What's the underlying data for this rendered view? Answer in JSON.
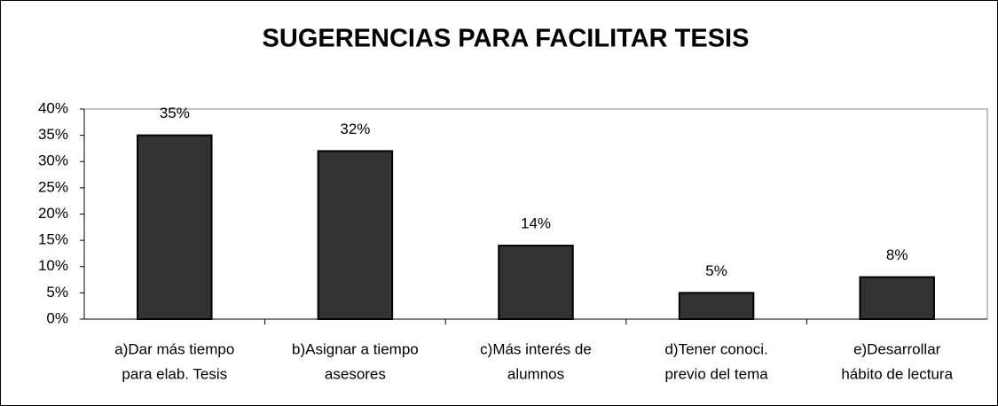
{
  "chart_data": {
    "type": "bar",
    "title": "SUGERENCIAS PARA FACILITAR TESIS",
    "categories": [
      [
        "a)Dar más tiempo",
        "para elab. Tesis"
      ],
      [
        "b)Asignar a tiempo",
        "asesores"
      ],
      [
        "c)Más interés de",
        "alumnos"
      ],
      [
        "d)Tener conoci.",
        "previo del tema"
      ],
      [
        "e)Desarrollar",
        "hábito de lectura"
      ]
    ],
    "values": [
      35,
      32,
      14,
      5,
      8
    ],
    "value_labels": [
      "35%",
      "32%",
      "14%",
      "5%",
      "8%"
    ],
    "color": "#333333",
    "ylim": [
      0,
      40
    ],
    "yticks": [
      {
        "value": 0,
        "label": "0%"
      },
      {
        "value": 5,
        "label": "5%"
      },
      {
        "value": 10,
        "label": "10%"
      },
      {
        "value": 15,
        "label": "15%"
      },
      {
        "value": 20,
        "label": "20%"
      },
      {
        "value": 25,
        "label": "25%"
      },
      {
        "value": 30,
        "label": "30%"
      },
      {
        "value": 35,
        "label": "35%"
      },
      {
        "value": 40,
        "label": "40%"
      }
    ],
    "grid": false
  }
}
